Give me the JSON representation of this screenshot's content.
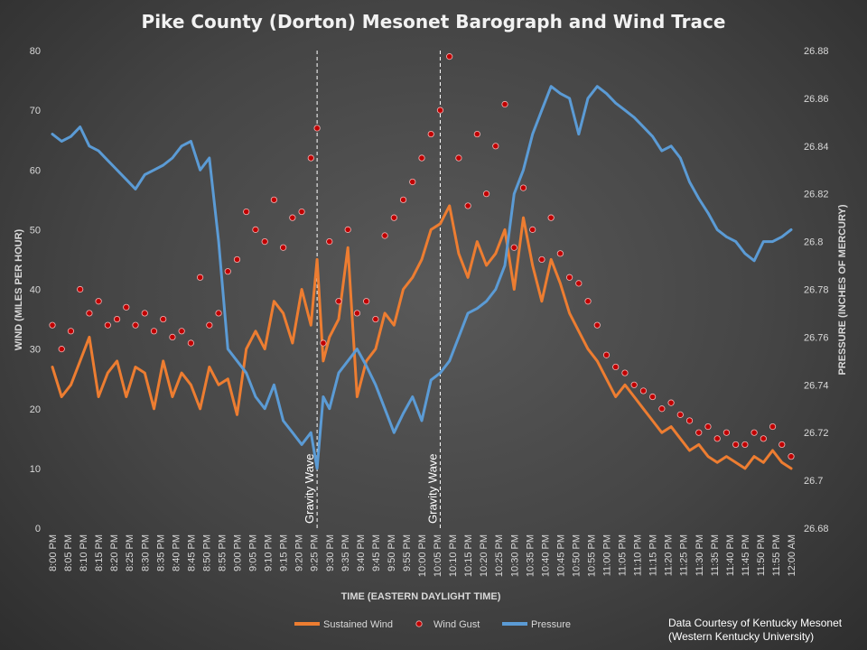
{
  "chart_data": {
    "type": "line",
    "title": "Pike County (Dorton) Mesonet Barograph and Wind Trace",
    "xlabel": "TIME (EASTERN DAYLIGHT TIME)",
    "ylabel_left": "WIND (MILES PER HOUR)",
    "ylabel_right": "PRESSURE (INCHES OF MERCURY)",
    "x_ticks": [
      "8:00 PM",
      "8:05 PM",
      "8:10 PM",
      "8:15 PM",
      "8:20 PM",
      "8:25 PM",
      "8:30 PM",
      "8:35 PM",
      "8:40 PM",
      "8:45 PM",
      "8:50 PM",
      "8:55 PM",
      "9:00 PM",
      "9:05 PM",
      "9:10 PM",
      "9:15 PM",
      "9:20 PM",
      "9:25 PM",
      "9:30 PM",
      "9:35 PM",
      "9:40 PM",
      "9:45 PM",
      "9:50 PM",
      "9:55 PM",
      "10:00 PM",
      "10:05 PM",
      "10:10 PM",
      "10:15 PM",
      "10:20 PM",
      "10:25 PM",
      "10:30 PM",
      "10:35 PM",
      "10:40 PM",
      "10:45 PM",
      "10:50 PM",
      "10:55 PM",
      "11:00 PM",
      "11:05 PM",
      "11:10 PM",
      "11:15 PM",
      "11:20 PM",
      "11:25 PM",
      "11:30 PM",
      "11:35 PM",
      "11:40 PM",
      "11:45 PM",
      "11:50 PM",
      "11:55 PM",
      "12:00 AM"
    ],
    "y_left_ticks": [
      "0",
      "10",
      "20",
      "30",
      "40",
      "50",
      "60",
      "70",
      "80"
    ],
    "y_right_ticks": [
      "26.68",
      "26.7",
      "26.72",
      "26.74",
      "26.76",
      "26.78",
      "26.8",
      "26.82",
      "26.84",
      "26.86",
      "26.88"
    ],
    "ylim_left": [
      0,
      80
    ],
    "ylim_right": [
      26.68,
      26.88
    ],
    "grid": false,
    "legend_position": "bottom",
    "series": [
      {
        "name": "Sustained Wind",
        "color": "#ed7d31",
        "axis": "left",
        "x_minutes": [
          0,
          3,
          6,
          9,
          12,
          15,
          18,
          21,
          24,
          27,
          30,
          33,
          36,
          39,
          42,
          45,
          48,
          51,
          54,
          57,
          60,
          63,
          66,
          69,
          72,
          75,
          78,
          81,
          84,
          86,
          88,
          90,
          93,
          96,
          99,
          102,
          105,
          108,
          111,
          114,
          117,
          120,
          123,
          126,
          129,
          132,
          135,
          138,
          141,
          144,
          147,
          150,
          153,
          156,
          159,
          162,
          165,
          168,
          171,
          174,
          177,
          180,
          183,
          186,
          189,
          192,
          195,
          198,
          201,
          204,
          207,
          210,
          213,
          216,
          219,
          222,
          225,
          228,
          231,
          234,
          237,
          240
        ],
        "values": [
          27,
          22,
          24,
          28,
          32,
          22,
          26,
          28,
          22,
          27,
          26,
          20,
          28,
          22,
          26,
          24,
          20,
          27,
          24,
          25,
          19,
          30,
          33,
          30,
          38,
          36,
          31,
          40,
          34,
          45,
          28,
          32,
          35,
          47,
          22,
          28,
          30,
          36,
          34,
          40,
          42,
          45,
          50,
          51,
          54,
          46,
          42,
          48,
          44,
          46,
          50,
          40,
          52,
          44,
          38,
          45,
          41,
          36,
          33,
          30,
          28,
          25,
          22,
          24,
          22,
          20,
          18,
          16,
          17,
          15,
          13,
          14,
          12,
          11,
          12,
          11,
          10,
          12,
          11,
          13,
          11,
          10
        ]
      },
      {
        "name": "Wind Gust",
        "color": "#c00000",
        "axis": "left",
        "x_minutes": [
          0,
          3,
          6,
          9,
          12,
          15,
          18,
          21,
          24,
          27,
          30,
          33,
          36,
          39,
          42,
          45,
          48,
          51,
          54,
          57,
          60,
          63,
          66,
          69,
          72,
          75,
          78,
          81,
          84,
          86,
          88,
          90,
          93,
          96,
          99,
          102,
          105,
          108,
          111,
          114,
          117,
          120,
          123,
          126,
          129,
          132,
          135,
          138,
          141,
          144,
          147,
          150,
          153,
          156,
          159,
          162,
          165,
          168,
          171,
          174,
          177,
          180,
          183,
          186,
          189,
          192,
          195,
          198,
          201,
          204,
          207,
          210,
          213,
          216,
          219,
          222,
          225,
          228,
          231,
          234,
          237,
          240
        ],
        "values": [
          34,
          30,
          33,
          40,
          36,
          38,
          34,
          35,
          37,
          34,
          36,
          33,
          35,
          32,
          33,
          31,
          42,
          34,
          36,
          43,
          45,
          53,
          50,
          48,
          55,
          47,
          52,
          53,
          62,
          67,
          31,
          48,
          38,
          50,
          36,
          38,
          35,
          49,
          52,
          55,
          58,
          62,
          66,
          70,
          79,
          62,
          54,
          66,
          56,
          64,
          71,
          47,
          57,
          50,
          45,
          52,
          46,
          42,
          41,
          38,
          34,
          29,
          27,
          26,
          24,
          23,
          22,
          20,
          21,
          19,
          18,
          16,
          17,
          15,
          16,
          14,
          14,
          16,
          15,
          17,
          14,
          12
        ]
      },
      {
        "name": "Pressure",
        "color": "#5b9bd5",
        "axis": "right",
        "x_minutes": [
          0,
          3,
          6,
          9,
          12,
          15,
          18,
          21,
          24,
          27,
          30,
          33,
          36,
          39,
          42,
          45,
          48,
          51,
          54,
          57,
          60,
          63,
          66,
          69,
          72,
          75,
          78,
          81,
          84,
          86,
          88,
          90,
          93,
          96,
          99,
          102,
          105,
          108,
          111,
          114,
          117,
          120,
          123,
          126,
          129,
          132,
          135,
          138,
          141,
          144,
          147,
          150,
          153,
          156,
          159,
          162,
          165,
          168,
          171,
          174,
          177,
          180,
          183,
          186,
          189,
          192,
          195,
          198,
          201,
          204,
          207,
          210,
          213,
          216,
          219,
          222,
          225,
          228,
          231,
          234,
          237,
          240
        ],
        "values": [
          26.845,
          26.842,
          26.844,
          26.848,
          26.84,
          26.838,
          26.834,
          26.83,
          26.826,
          26.822,
          26.828,
          26.83,
          26.832,
          26.835,
          26.84,
          26.842,
          26.83,
          26.835,
          26.8,
          26.755,
          26.75,
          26.745,
          26.735,
          26.73,
          26.74,
          26.725,
          26.72,
          26.715,
          26.72,
          26.705,
          26.735,
          26.73,
          26.745,
          26.75,
          26.755,
          26.748,
          26.74,
          26.73,
          26.72,
          26.728,
          26.735,
          26.725,
          26.742,
          26.745,
          26.75,
          26.76,
          26.77,
          26.772,
          26.775,
          26.78,
          26.79,
          26.82,
          26.83,
          26.845,
          26.855,
          26.865,
          26.862,
          26.86,
          26.845,
          26.86,
          26.865,
          26.862,
          26.858,
          26.855,
          26.852,
          26.848,
          26.844,
          26.838,
          26.84,
          26.835,
          26.825,
          26.818,
          26.812,
          26.805,
          26.802,
          26.8,
          26.795,
          26.792,
          26.8,
          26.8,
          26.802,
          26.805
        ]
      }
    ],
    "annotations": [
      {
        "text": "Gravity Wave",
        "x_minutes": 86
      },
      {
        "text": "Gravity Wave",
        "x_minutes": 126
      }
    ]
  },
  "credit": {
    "line1": "Data Courtesy of Kentucky Mesonet",
    "line2": "(Western Kentucky University)"
  }
}
